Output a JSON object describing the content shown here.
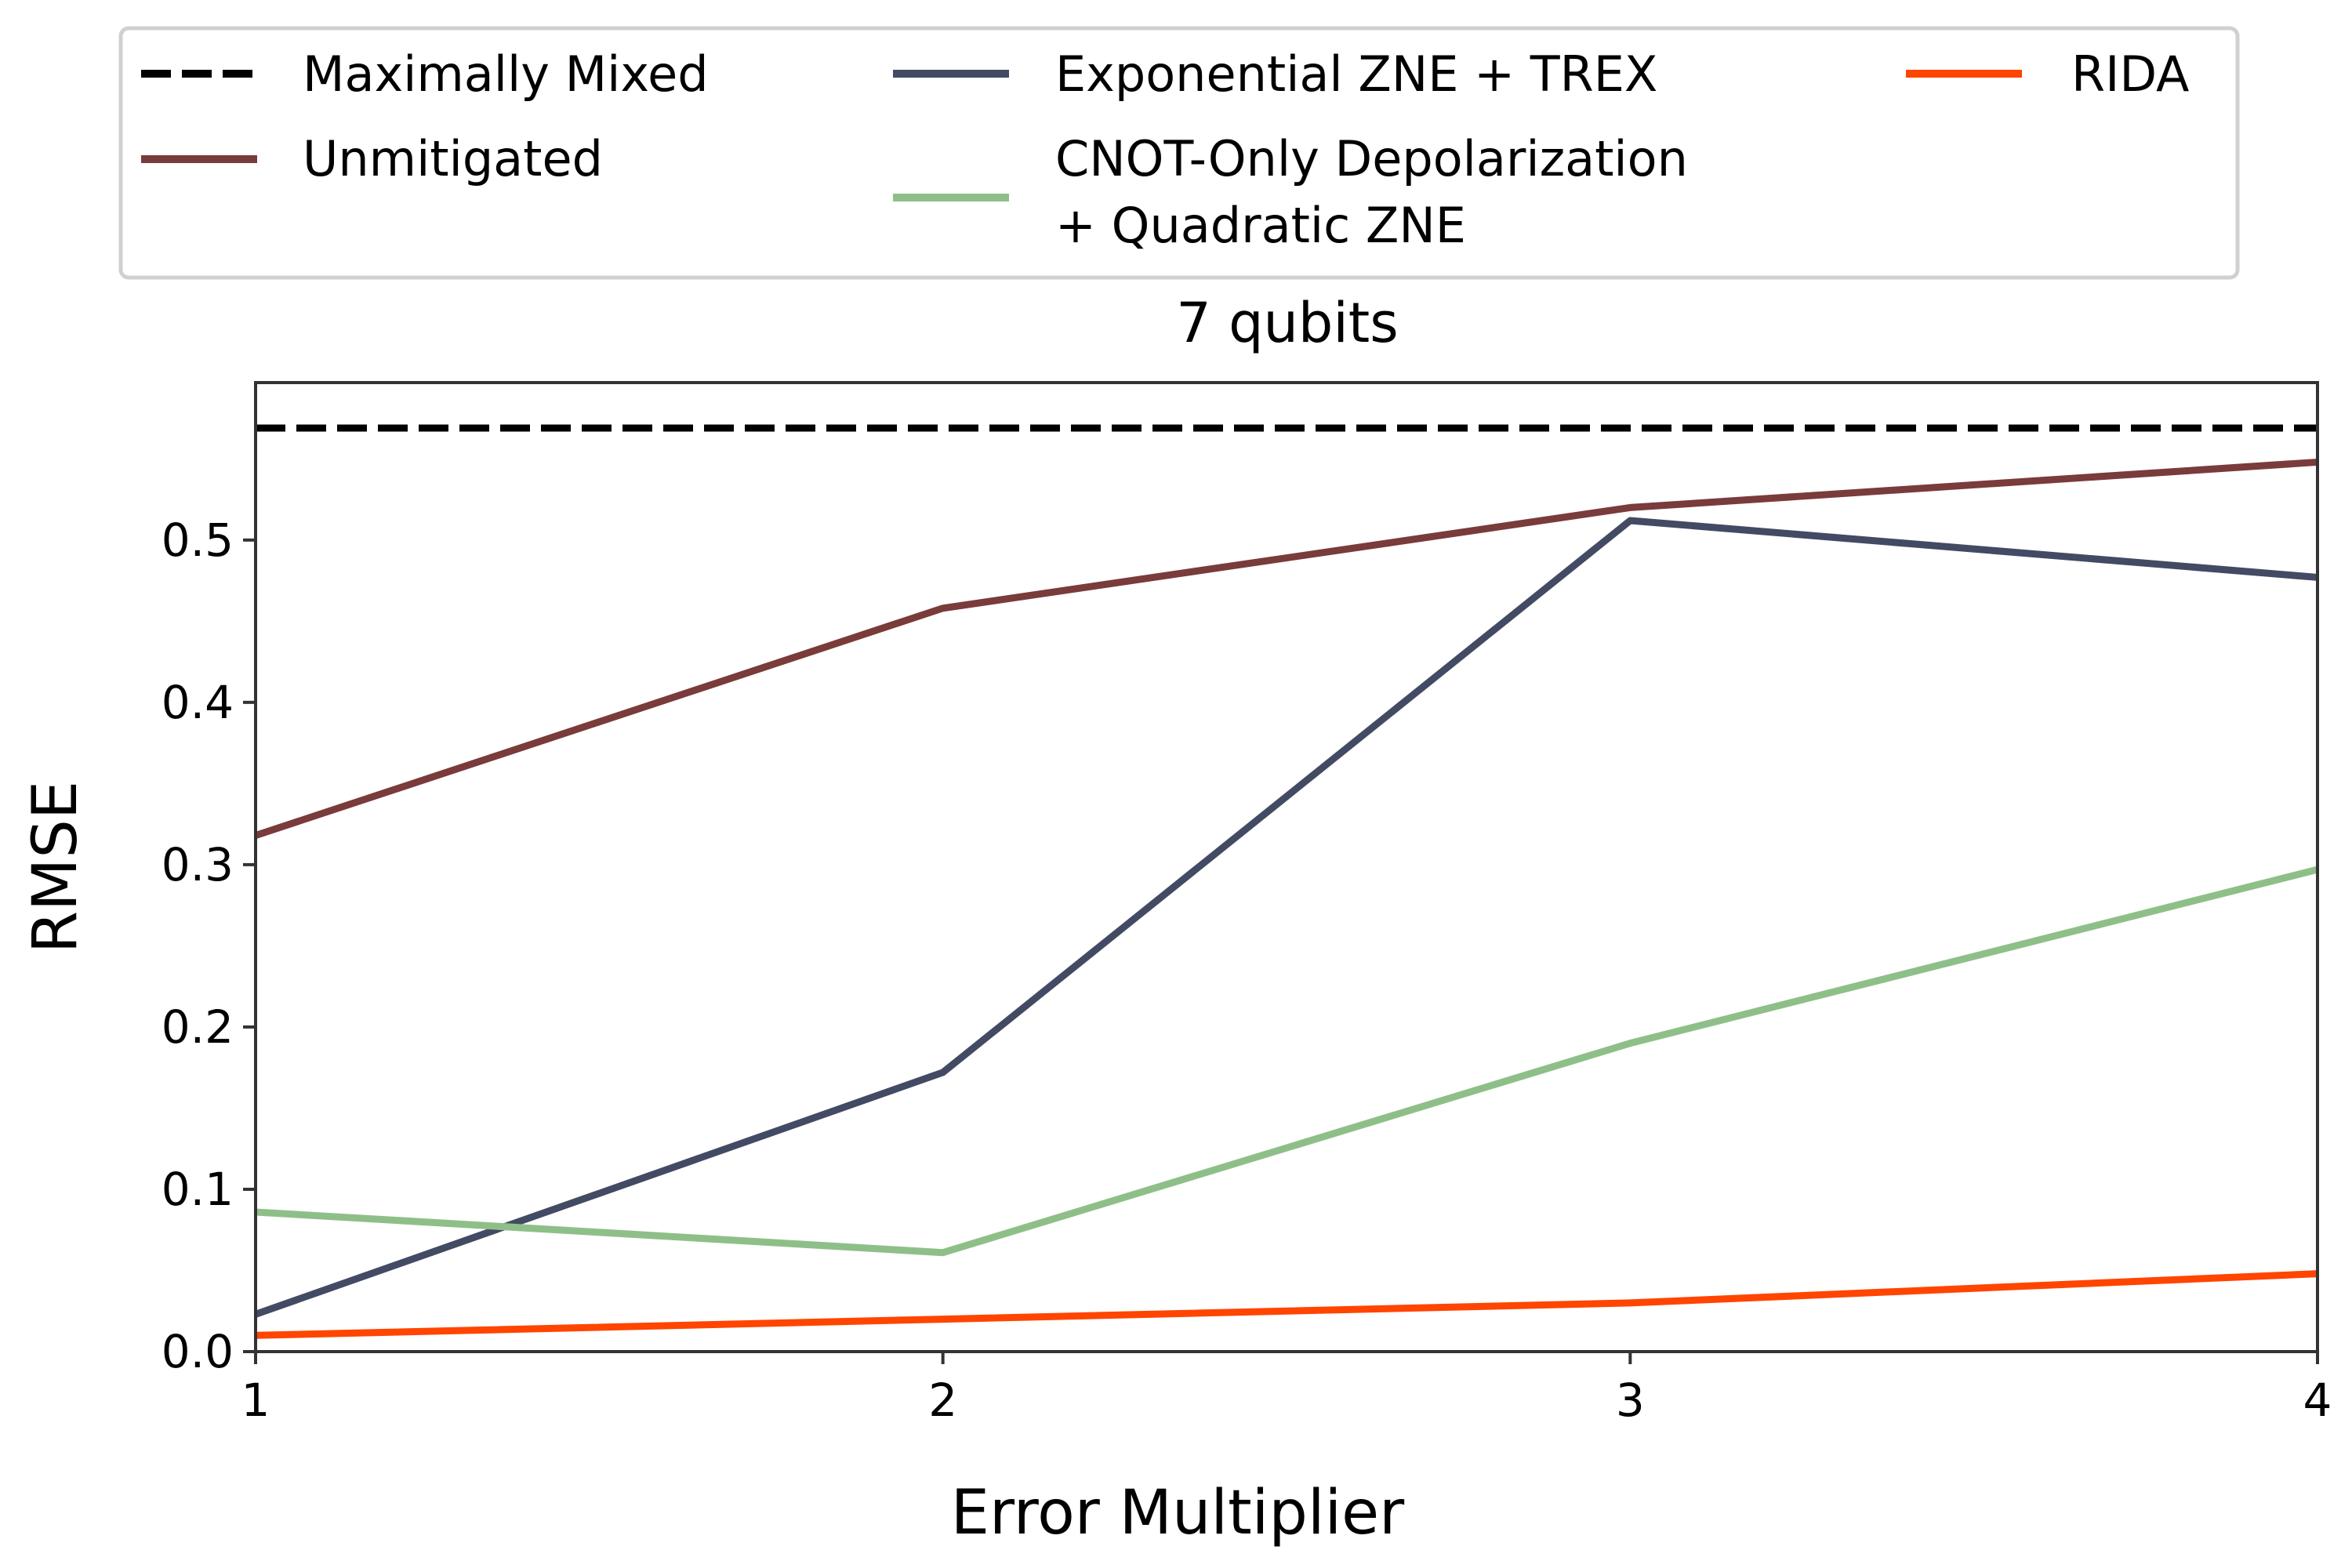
{
  "chart_data": {
    "type": "line",
    "title": "7 qubits",
    "xlabel": "Error Multiplier",
    "ylabel": "RMSE",
    "xlim": [
      1,
      4
    ],
    "ylim": [
      0.0,
      0.597
    ],
    "x_ticks": [
      "1",
      "2",
      "3",
      "4"
    ],
    "x_tick_values": [
      1,
      2,
      3,
      4
    ],
    "y_ticks": [
      "0.0",
      "0.1",
      "0.2",
      "0.3",
      "0.4",
      "0.5"
    ],
    "y_tick_values": [
      0.0,
      0.1,
      0.2,
      0.3,
      0.4,
      0.5
    ],
    "grid": false,
    "legend_placement": "top, outside plot",
    "x": [
      1,
      2,
      3,
      4
    ],
    "series": [
      {
        "key": "maximally-mixed",
        "name": "Maximally Mixed",
        "color": "#000000",
        "dashed": true,
        "values": [
          0.569,
          0.569,
          0.569,
          0.569
        ]
      },
      {
        "key": "unmitigated",
        "name": "Unmitigated",
        "color": "#7a3b3b",
        "dashed": false,
        "values": [
          0.318,
          0.458,
          0.52,
          0.548
        ]
      },
      {
        "key": "exponential-zne-trex",
        "name": "Exponential ZNE + TREX",
        "color": "#434a63",
        "dashed": false,
        "values": [
          0.023,
          0.172,
          0.512,
          0.477
        ]
      },
      {
        "key": "cnot-depolarization",
        "name": "CNOT-Only Depolarization\n+ Quadratic ZNE",
        "name_lines": [
          "CNOT-Only Depolarization",
          "+ Quadratic ZNE"
        ],
        "color": "#8fbf88",
        "dashed": false,
        "values": [
          0.086,
          0.061,
          0.19,
          0.297
        ]
      },
      {
        "key": "rida",
        "name": "RIDA",
        "color": "#ff4500",
        "dashed": false,
        "values": [
          0.01,
          0.02,
          0.03,
          0.048
        ]
      }
    ]
  }
}
